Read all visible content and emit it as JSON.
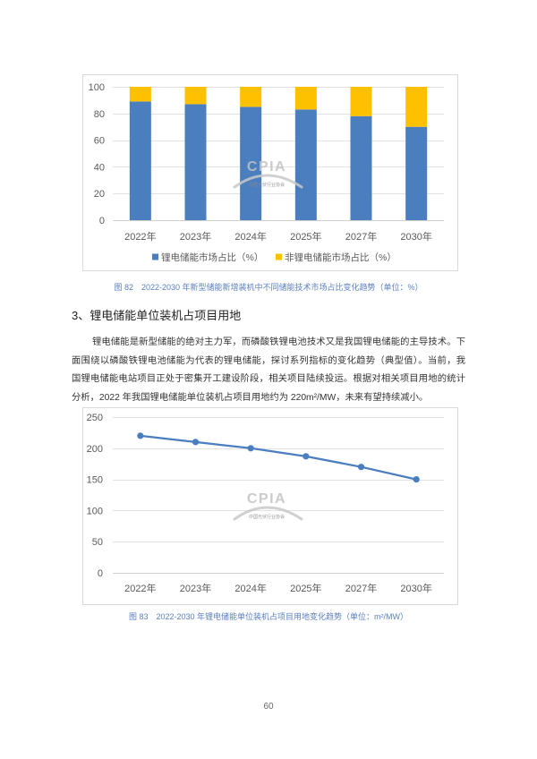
{
  "watermark": {
    "logo_text": "CPIA",
    "org_name": "中国光伏行业协会"
  },
  "section": {
    "heading": "3、锂电储能单位装机占项目用地",
    "paragraph_lines": [
      "锂电储能是新型储能的绝对主力军，而磷酸铁锂电池技术又是我国锂电储能的主导技术。下",
      "面围绕以磷酸铁锂电池储能为代表的锂电储能，探讨系列指标的变化趋势（典型值）。当前，我",
      "国锂电储能电站项目正处于密集开工建设阶段，相关项目陆续投运。根据对相关项目用地的统计",
      "分析，2022 年我国锂电储能单位装机占项目用地约为 220m²/MW，未来有望持续减小。"
    ]
  },
  "page_number": "60",
  "chart_data": [
    {
      "type": "bar",
      "stacked": true,
      "title": "图 82　2022-2030 年新型储能新增装机中不同储能技术市场占比变化趋势（单位：%）",
      "categories": [
        "2022年",
        "2023年",
        "2024年",
        "2025年",
        "2027年",
        "2030年"
      ],
      "series": [
        {
          "name": "锂电储能市场占比（%）",
          "values": [
            89,
            87,
            85,
            83,
            78,
            70
          ],
          "color": "#4a7ebf"
        },
        {
          "name": "非锂电储能市场占比（%）",
          "values": [
            11,
            13,
            15,
            17,
            22,
            30
          ],
          "color": "#ffc000"
        }
      ],
      "ylim": [
        0,
        100
      ],
      "yticks": [
        0,
        20,
        40,
        60,
        80,
        100
      ],
      "grid": true,
      "legend": "bottom"
    },
    {
      "type": "line",
      "title": "图 83　2022-2030 年锂电储能单位装机占项目用地变化趋势（单位：m²/MW）",
      "categories": [
        "2022年",
        "2023年",
        "2024年",
        "2025年",
        "2027年",
        "2030年"
      ],
      "series": [
        {
          "values": [
            220,
            210,
            200,
            187,
            170,
            150
          ],
          "color": "#4a7ebf",
          "marker": "circle"
        }
      ],
      "ylim": [
        0,
        250
      ],
      "yticks": [
        0,
        50,
        100,
        150,
        200,
        250
      ],
      "grid": true
    }
  ]
}
